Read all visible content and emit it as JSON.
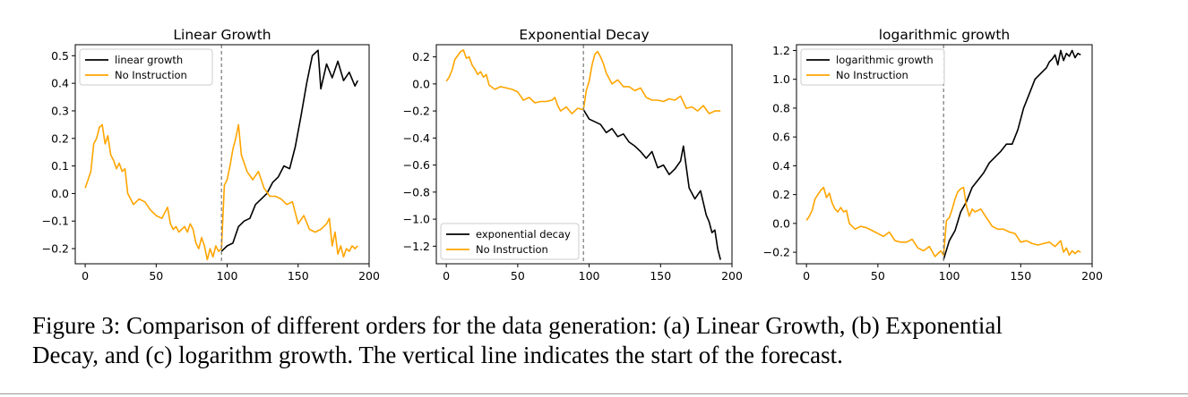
{
  "colors": {
    "forecast": "#000000",
    "no_instruction": "#FFA500",
    "divider": "#777777"
  },
  "caption": {
    "line1": "Figure 3: Comparison of different orders for the data generation: (a) Linear Growth, (b) Exponential",
    "line2": "Decay, and (c) logarithm growth. The vertical line indicates the start of the forecast."
  },
  "chart_data": [
    {
      "type": "line",
      "title": "Linear Growth",
      "xlabel": "",
      "ylabel": "",
      "xlim": [
        -7,
        200
      ],
      "ylim": [
        -0.255,
        0.54
      ],
      "xticks": [
        0,
        50,
        100,
        150,
        200
      ],
      "yticks": [
        -0.2,
        -0.1,
        0.0,
        0.1,
        0.2,
        0.3,
        0.4,
        0.5
      ],
      "ytick_labels": [
        "−0.2",
        "−0.1",
        "0.0",
        "0.1",
        "0.2",
        "0.3",
        "0.4",
        "0.5"
      ],
      "forecast_start": 96,
      "grid": false,
      "legend": "top-left",
      "series": [
        {
          "name": "linear growth",
          "color": "#000000",
          "x": [
            96,
            100,
            104,
            108,
            112,
            116,
            120,
            124,
            128,
            132,
            136,
            140,
            144,
            148,
            152,
            156,
            160,
            164,
            166,
            170,
            174,
            178,
            182,
            186,
            190,
            192
          ],
          "y": [
            -0.21,
            -0.19,
            -0.18,
            -0.12,
            -0.1,
            -0.09,
            -0.04,
            -0.02,
            0.0,
            0.04,
            0.06,
            0.1,
            0.09,
            0.17,
            0.28,
            0.4,
            0.5,
            0.52,
            0.38,
            0.47,
            0.42,
            0.48,
            0.41,
            0.44,
            0.39,
            0.41
          ]
        },
        {
          "name": "No Instruction",
          "color": "#FFA500",
          "x": [
            0,
            2,
            4,
            6,
            8,
            10,
            12,
            14,
            16,
            18,
            20,
            22,
            24,
            26,
            28,
            30,
            34,
            38,
            42,
            46,
            50,
            54,
            58,
            60,
            62,
            64,
            66,
            68,
            70,
            72,
            74,
            76,
            78,
            80,
            82,
            84,
            86,
            88,
            90,
            92,
            94,
            96,
            98,
            100,
            102,
            104,
            106,
            108,
            110,
            112,
            114,
            118,
            122,
            126,
            130,
            134,
            138,
            142,
            146,
            150,
            154,
            158,
            162,
            166,
            170,
            172,
            174,
            176,
            178,
            180,
            182,
            184,
            186,
            188,
            190,
            192
          ],
          "y": [
            0.02,
            0.05,
            0.08,
            0.18,
            0.2,
            0.24,
            0.25,
            0.18,
            0.21,
            0.14,
            0.12,
            0.09,
            0.11,
            0.08,
            0.09,
            0.0,
            -0.04,
            -0.02,
            -0.03,
            -0.06,
            -0.08,
            -0.09,
            -0.05,
            -0.11,
            -0.13,
            -0.12,
            -0.14,
            -0.13,
            -0.12,
            -0.14,
            -0.11,
            -0.13,
            -0.18,
            -0.2,
            -0.16,
            -0.19,
            -0.24,
            -0.2,
            -0.23,
            -0.19,
            -0.21,
            -0.2,
            0.03,
            0.05,
            0.1,
            0.16,
            0.2,
            0.25,
            0.14,
            0.11,
            0.08,
            0.05,
            0.08,
            0.02,
            -0.01,
            -0.01,
            -0.02,
            -0.04,
            -0.03,
            -0.11,
            -0.08,
            -0.13,
            -0.14,
            -0.13,
            -0.11,
            -0.09,
            -0.19,
            -0.14,
            -0.22,
            -0.19,
            -0.23,
            -0.2,
            -0.21,
            -0.19,
            -0.2,
            -0.19
          ]
        }
      ]
    },
    {
      "type": "line",
      "title": "Exponential Decay",
      "xlabel": "",
      "ylabel": "",
      "xlim": [
        -7,
        200
      ],
      "ylim": [
        -1.33,
        0.29
      ],
      "xticks": [
        0,
        50,
        100,
        150,
        200
      ],
      "yticks": [
        -1.2,
        -1.0,
        -0.8,
        -0.6,
        -0.4,
        -0.2,
        0.0,
        0.2
      ],
      "ytick_labels": [
        "−1.2",
        "−1.0",
        "−0.8",
        "−0.6",
        "−0.4",
        "−0.2",
        "0.0",
        "0.2"
      ],
      "forecast_start": 96,
      "grid": false,
      "legend": "bottom-left",
      "series": [
        {
          "name": "exponential decay",
          "color": "#000000",
          "x": [
            96,
            100,
            104,
            108,
            112,
            116,
            120,
            124,
            128,
            132,
            136,
            140,
            144,
            148,
            152,
            156,
            160,
            164,
            166,
            170,
            174,
            178,
            182,
            184,
            186,
            188,
            190,
            192
          ],
          "y": [
            -0.19,
            -0.26,
            -0.28,
            -0.3,
            -0.36,
            -0.33,
            -0.39,
            -0.37,
            -0.43,
            -0.46,
            -0.5,
            -0.55,
            -0.5,
            -0.62,
            -0.6,
            -0.67,
            -0.63,
            -0.57,
            -0.46,
            -0.77,
            -0.85,
            -0.79,
            -0.97,
            -1.02,
            -1.1,
            -1.08,
            -1.22,
            -1.3
          ]
        },
        {
          "name": "No Instruction",
          "color": "#FFA500",
          "x": [
            0,
            2,
            4,
            6,
            8,
            10,
            12,
            14,
            16,
            18,
            20,
            22,
            24,
            26,
            28,
            30,
            34,
            38,
            42,
            46,
            50,
            54,
            58,
            62,
            66,
            70,
            74,
            76,
            78,
            80,
            84,
            88,
            92,
            96,
            98,
            100,
            102,
            104,
            106,
            108,
            110,
            112,
            116,
            120,
            124,
            128,
            132,
            136,
            140,
            144,
            148,
            152,
            156,
            160,
            164,
            168,
            172,
            176,
            180,
            184,
            188,
            192
          ],
          "y": [
            0.02,
            0.05,
            0.1,
            0.18,
            0.21,
            0.24,
            0.25,
            0.19,
            0.2,
            0.14,
            0.11,
            0.07,
            0.09,
            0.05,
            0.07,
            -0.01,
            -0.04,
            -0.02,
            -0.03,
            -0.04,
            -0.06,
            -0.12,
            -0.1,
            -0.14,
            -0.13,
            -0.13,
            -0.12,
            -0.1,
            -0.16,
            -0.2,
            -0.17,
            -0.22,
            -0.18,
            -0.19,
            -0.05,
            0.02,
            0.14,
            0.22,
            0.24,
            0.2,
            0.15,
            0.08,
            0.0,
            0.03,
            -0.02,
            -0.02,
            -0.05,
            -0.03,
            -0.1,
            -0.12,
            -0.12,
            -0.13,
            -0.11,
            -0.12,
            -0.09,
            -0.18,
            -0.17,
            -0.2,
            -0.16,
            -0.22,
            -0.2,
            -0.2
          ]
        }
      ]
    },
    {
      "type": "line",
      "title": "logarithmic growth",
      "xlabel": "",
      "ylabel": "",
      "xlim": [
        -7,
        200
      ],
      "ylim": [
        -0.28,
        1.24
      ],
      "xticks": [
        0,
        50,
        100,
        150,
        200
      ],
      "yticks": [
        -0.2,
        0.0,
        0.2,
        0.4,
        0.6,
        0.8,
        1.0,
        1.2
      ],
      "ytick_labels": [
        "−0.2",
        "0.0",
        "0.2",
        "0.4",
        "0.6",
        "0.8",
        "1.0",
        "1.2"
      ],
      "forecast_start": 96,
      "grid": false,
      "legend": "top-left",
      "series": [
        {
          "name": "logarithmic growth",
          "color": "#000000",
          "x": [
            96,
            100,
            104,
            108,
            112,
            116,
            120,
            124,
            128,
            132,
            136,
            140,
            144,
            148,
            152,
            156,
            160,
            164,
            168,
            170,
            172,
            174,
            176,
            178,
            180,
            182,
            184,
            186,
            188,
            190,
            192
          ],
          "y": [
            -0.25,
            -0.12,
            -0.05,
            0.08,
            0.15,
            0.25,
            0.3,
            0.35,
            0.42,
            0.46,
            0.5,
            0.55,
            0.55,
            0.65,
            0.8,
            0.9,
            1.0,
            1.04,
            1.08,
            1.12,
            1.14,
            1.17,
            1.1,
            1.2,
            1.13,
            1.18,
            1.16,
            1.2,
            1.15,
            1.18,
            1.17
          ]
        },
        {
          "name": "No Instruction",
          "color": "#FFA500",
          "x": [
            0,
            2,
            4,
            6,
            8,
            10,
            12,
            14,
            16,
            18,
            20,
            22,
            24,
            26,
            28,
            30,
            34,
            38,
            42,
            46,
            50,
            54,
            58,
            62,
            66,
            70,
            74,
            78,
            82,
            86,
            90,
            94,
            96,
            98,
            100,
            102,
            104,
            106,
            108,
            110,
            112,
            114,
            116,
            118,
            122,
            126,
            130,
            134,
            138,
            142,
            146,
            150,
            154,
            158,
            162,
            166,
            170,
            174,
            178,
            180,
            182,
            184,
            186,
            188,
            190,
            192
          ],
          "y": [
            0.02,
            0.05,
            0.09,
            0.17,
            0.2,
            0.23,
            0.25,
            0.18,
            0.21,
            0.14,
            0.1,
            0.08,
            0.11,
            0.08,
            0.09,
            0.0,
            -0.04,
            -0.02,
            -0.03,
            -0.05,
            -0.07,
            -0.09,
            -0.06,
            -0.12,
            -0.13,
            -0.13,
            -0.11,
            -0.17,
            -0.19,
            -0.16,
            -0.23,
            -0.19,
            -0.22,
            0.02,
            0.04,
            0.1,
            0.17,
            0.22,
            0.24,
            0.25,
            0.12,
            0.05,
            0.1,
            0.08,
            0.1,
            0.04,
            -0.02,
            -0.04,
            -0.04,
            -0.06,
            -0.07,
            -0.13,
            -0.12,
            -0.14,
            -0.15,
            -0.14,
            -0.13,
            -0.16,
            -0.12,
            -0.2,
            -0.17,
            -0.22,
            -0.19,
            -0.21,
            -0.19,
            -0.2
          ]
        }
      ]
    }
  ]
}
